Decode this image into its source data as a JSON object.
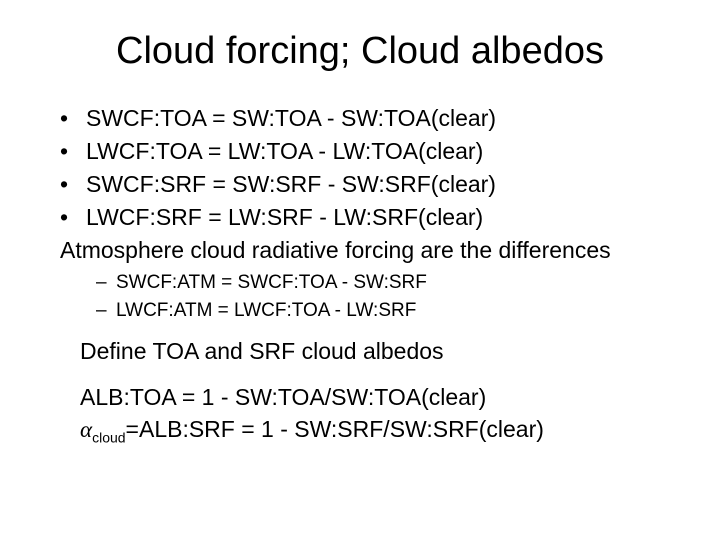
{
  "title": "Cloud forcing; Cloud albedos",
  "bullets": [
    "SWCF:TOA = SW:TOA - SW:TOA(clear)",
    "LWCF:TOA = LW:TOA - LW:TOA(clear)",
    "SWCF:SRF = SW:SRF - SW:SRF(clear)",
    "LWCF:SRF = LW:SRF - LW:SRF(clear)"
  ],
  "wrap_line": "Atmosphere cloud radiative forcing are the differences",
  "sub_bullets": [
    "SWCF:ATM = SWCF:TOA - SW:SRF",
    "LWCF:ATM = LWCF:TOA - LW:SRF"
  ],
  "define_line": "Define TOA and SRF cloud albedos",
  "formula1": "ALB:TOA = 1 - SW:TOA/SW:TOA(clear)",
  "formula2_symbol": "α",
  "formula2_subscript": "cloud",
  "formula2_rest": "=ALB:SRF = 1 - SW:SRF/SW:SRF(clear)",
  "colors": {
    "background": "#ffffff",
    "text": "#000000"
  },
  "typography": {
    "title_fontsize": 38,
    "body_fontsize": 23,
    "sub_fontsize": 19,
    "subscript_fontsize": 14,
    "font_family": "Arial"
  }
}
